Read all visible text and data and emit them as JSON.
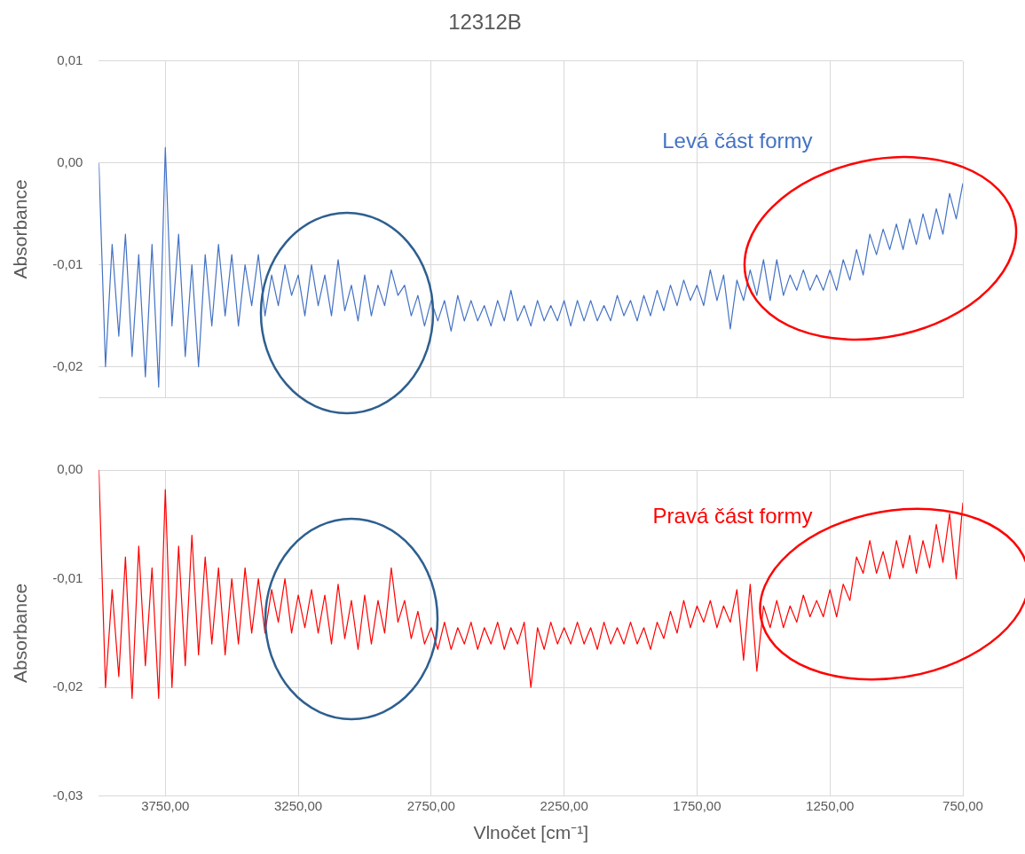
{
  "chart_data": [
    {
      "type": "line",
      "title": "12312B",
      "ylabel": "Absorbance",
      "grid": true,
      "tick_labels": "y",
      "line_style": "solid",
      "xlim": [
        4000,
        750
      ],
      "ylim": [
        -0.023,
        0.01
      ],
      "xticks": [
        {
          "value": 3750,
          "label": null
        },
        {
          "value": 3250,
          "label": null
        },
        {
          "value": 2750,
          "label": null
        },
        {
          "value": 2250,
          "label": null
        },
        {
          "value": 1750,
          "label": null
        },
        {
          "value": 1250,
          "label": null
        },
        {
          "value": 750,
          "label": null
        }
      ],
      "yticks": [
        {
          "value": 0.01,
          "label": "0,01"
        },
        {
          "value": 0,
          "label": "0,00"
        },
        {
          "value": -0.01,
          "label": "-0,01"
        },
        {
          "value": -0.02,
          "label": "-0,02"
        }
      ],
      "x": [
        4000,
        3975,
        3950,
        3925,
        3900,
        3875,
        3850,
        3825,
        3800,
        3775,
        3750,
        3725,
        3700,
        3675,
        3650,
        3625,
        3600,
        3575,
        3550,
        3525,
        3500,
        3475,
        3450,
        3425,
        3400,
        3375,
        3350,
        3325,
        3300,
        3275,
        3250,
        3225,
        3200,
        3175,
        3150,
        3125,
        3100,
        3075,
        3050,
        3025,
        3000,
        2975,
        2950,
        2925,
        2900,
        2875,
        2850,
        2825,
        2800,
        2775,
        2750,
        2725,
        2700,
        2675,
        2650,
        2625,
        2600,
        2575,
        2550,
        2525,
        2500,
        2475,
        2450,
        2425,
        2400,
        2375,
        2350,
        2325,
        2300,
        2275,
        2250,
        2225,
        2200,
        2175,
        2150,
        2125,
        2100,
        2075,
        2050,
        2025,
        2000,
        1975,
        1950,
        1925,
        1900,
        1875,
        1850,
        1825,
        1800,
        1775,
        1750,
        1725,
        1700,
        1675,
        1650,
        1625,
        1600,
        1575,
        1550,
        1525,
        1500,
        1475,
        1450,
        1425,
        1400,
        1375,
        1350,
        1325,
        1300,
        1275,
        1250,
        1225,
        1200,
        1175,
        1150,
        1125,
        1100,
        1075,
        1050,
        1025,
        1000,
        975,
        950,
        925,
        900,
        875,
        850,
        825,
        800,
        775,
        750
      ],
      "series": [
        {
          "name": "Levá část formy",
          "color": "#4472c4",
          "values": [
            0.0,
            -0.02,
            -0.008,
            -0.017,
            -0.007,
            -0.019,
            -0.009,
            -0.021,
            -0.008,
            -0.022,
            0.0015,
            -0.016,
            -0.007,
            -0.019,
            -0.01,
            -0.02,
            -0.009,
            -0.016,
            -0.008,
            -0.015,
            -0.009,
            -0.016,
            -0.01,
            -0.014,
            -0.009,
            -0.015,
            -0.011,
            -0.014,
            -0.01,
            -0.013,
            -0.011,
            -0.015,
            -0.01,
            -0.014,
            -0.011,
            -0.015,
            -0.0095,
            -0.0145,
            -0.012,
            -0.0155,
            -0.011,
            -0.015,
            -0.012,
            -0.014,
            -0.0105,
            -0.013,
            -0.012,
            -0.015,
            -0.013,
            -0.016,
            -0.0135,
            -0.0155,
            -0.0135,
            -0.0165,
            -0.013,
            -0.0155,
            -0.0135,
            -0.0155,
            -0.014,
            -0.016,
            -0.0135,
            -0.0155,
            -0.0125,
            -0.0155,
            -0.014,
            -0.016,
            -0.0135,
            -0.0155,
            -0.014,
            -0.0155,
            -0.0135,
            -0.016,
            -0.0135,
            -0.0155,
            -0.0135,
            -0.0155,
            -0.014,
            -0.0155,
            -0.013,
            -0.015,
            -0.0135,
            -0.0155,
            -0.013,
            -0.015,
            -0.0125,
            -0.0145,
            -0.012,
            -0.014,
            -0.0115,
            -0.0135,
            -0.012,
            -0.014,
            -0.0105,
            -0.0135,
            -0.011,
            -0.0163,
            -0.0115,
            -0.0135,
            -0.0105,
            -0.013,
            -0.0095,
            -0.0135,
            -0.0095,
            -0.013,
            -0.011,
            -0.0125,
            -0.0105,
            -0.0125,
            -0.011,
            -0.0125,
            -0.0105,
            -0.0125,
            -0.0095,
            -0.0115,
            -0.0085,
            -0.011,
            -0.007,
            -0.009,
            -0.0065,
            -0.0085,
            -0.006,
            -0.0085,
            -0.0055,
            -0.008,
            -0.005,
            -0.0075,
            -0.0045,
            -0.007,
            -0.003,
            -0.0055,
            -0.002
          ]
        }
      ]
    },
    {
      "type": "line",
      "ylabel": "Absorbance",
      "xlabel": "Vlnočet [cm⁻¹]",
      "grid": true,
      "line_style": "solid",
      "xlim": [
        4000,
        750
      ],
      "ylim": [
        -0.03,
        0
      ],
      "xticks": [
        {
          "value": 3750,
          "label": "3750,00"
        },
        {
          "value": 3250,
          "label": "3250,00"
        },
        {
          "value": 2750,
          "label": "2750,00"
        },
        {
          "value": 2250,
          "label": "2250,00"
        },
        {
          "value": 1750,
          "label": "1750,00"
        },
        {
          "value": 1250,
          "label": "1250,00"
        },
        {
          "value": 750,
          "label": "750,00"
        }
      ],
      "yticks": [
        {
          "value": 0,
          "label": "0,00"
        },
        {
          "value": -0.01,
          "label": "-0,01"
        },
        {
          "value": -0.02,
          "label": "-0,02"
        },
        {
          "value": -0.03,
          "label": "-0,03"
        }
      ],
      "x": [
        4000,
        3975,
        3950,
        3925,
        3900,
        3875,
        3850,
        3825,
        3800,
        3775,
        3750,
        3725,
        3700,
        3675,
        3650,
        3625,
        3600,
        3575,
        3550,
        3525,
        3500,
        3475,
        3450,
        3425,
        3400,
        3375,
        3350,
        3325,
        3300,
        3275,
        3250,
        3225,
        3200,
        3175,
        3150,
        3125,
        3100,
        3075,
        3050,
        3025,
        3000,
        2975,
        2950,
        2925,
        2900,
        2875,
        2850,
        2825,
        2800,
        2775,
        2750,
        2725,
        2700,
        2675,
        2650,
        2625,
        2600,
        2575,
        2550,
        2525,
        2500,
        2475,
        2450,
        2425,
        2400,
        2375,
        2350,
        2325,
        2300,
        2275,
        2250,
        2225,
        2200,
        2175,
        2150,
        2125,
        2100,
        2075,
        2050,
        2025,
        2000,
        1975,
        1950,
        1925,
        1900,
        1875,
        1850,
        1825,
        1800,
        1775,
        1750,
        1725,
        1700,
        1675,
        1650,
        1625,
        1600,
        1575,
        1550,
        1525,
        1500,
        1475,
        1450,
        1425,
        1400,
        1375,
        1350,
        1325,
        1300,
        1275,
        1250,
        1225,
        1200,
        1175,
        1150,
        1125,
        1100,
        1075,
        1050,
        1025,
        1000,
        975,
        950,
        925,
        900,
        875,
        850,
        825,
        800,
        775,
        750
      ],
      "series": [
        {
          "name": "Pravá část formy",
          "color": "#ff0000",
          "values": [
            0.0,
            -0.02,
            -0.011,
            -0.019,
            -0.008,
            -0.021,
            -0.007,
            -0.018,
            -0.009,
            -0.021,
            -0.0018,
            -0.02,
            -0.007,
            -0.018,
            -0.006,
            -0.017,
            -0.008,
            -0.016,
            -0.009,
            -0.017,
            -0.01,
            -0.016,
            -0.009,
            -0.015,
            -0.01,
            -0.015,
            -0.011,
            -0.014,
            -0.01,
            -0.015,
            -0.0115,
            -0.0145,
            -0.011,
            -0.015,
            -0.0115,
            -0.016,
            -0.0105,
            -0.0155,
            -0.012,
            -0.0165,
            -0.0115,
            -0.016,
            -0.012,
            -0.015,
            -0.009,
            -0.014,
            -0.012,
            -0.0155,
            -0.013,
            -0.016,
            -0.0145,
            -0.0165,
            -0.014,
            -0.0165,
            -0.0145,
            -0.016,
            -0.014,
            -0.0165,
            -0.0145,
            -0.016,
            -0.014,
            -0.0165,
            -0.0145,
            -0.016,
            -0.014,
            -0.02,
            -0.0145,
            -0.0165,
            -0.014,
            -0.016,
            -0.0145,
            -0.016,
            -0.014,
            -0.016,
            -0.0145,
            -0.0165,
            -0.014,
            -0.016,
            -0.0145,
            -0.016,
            -0.014,
            -0.016,
            -0.0145,
            -0.0165,
            -0.014,
            -0.0155,
            -0.013,
            -0.015,
            -0.012,
            -0.0145,
            -0.0125,
            -0.014,
            -0.012,
            -0.0145,
            -0.0125,
            -0.014,
            -0.011,
            -0.0175,
            -0.0105,
            -0.0185,
            -0.0125,
            -0.0145,
            -0.012,
            -0.0145,
            -0.0125,
            -0.014,
            -0.0115,
            -0.0135,
            -0.012,
            -0.0135,
            -0.011,
            -0.0135,
            -0.0105,
            -0.012,
            -0.008,
            -0.0095,
            -0.0065,
            -0.0095,
            -0.0075,
            -0.01,
            -0.0065,
            -0.009,
            -0.006,
            -0.0095,
            -0.0065,
            -0.009,
            -0.005,
            -0.0085,
            -0.004,
            -0.01,
            -0.003
          ]
        }
      ]
    }
  ]
}
